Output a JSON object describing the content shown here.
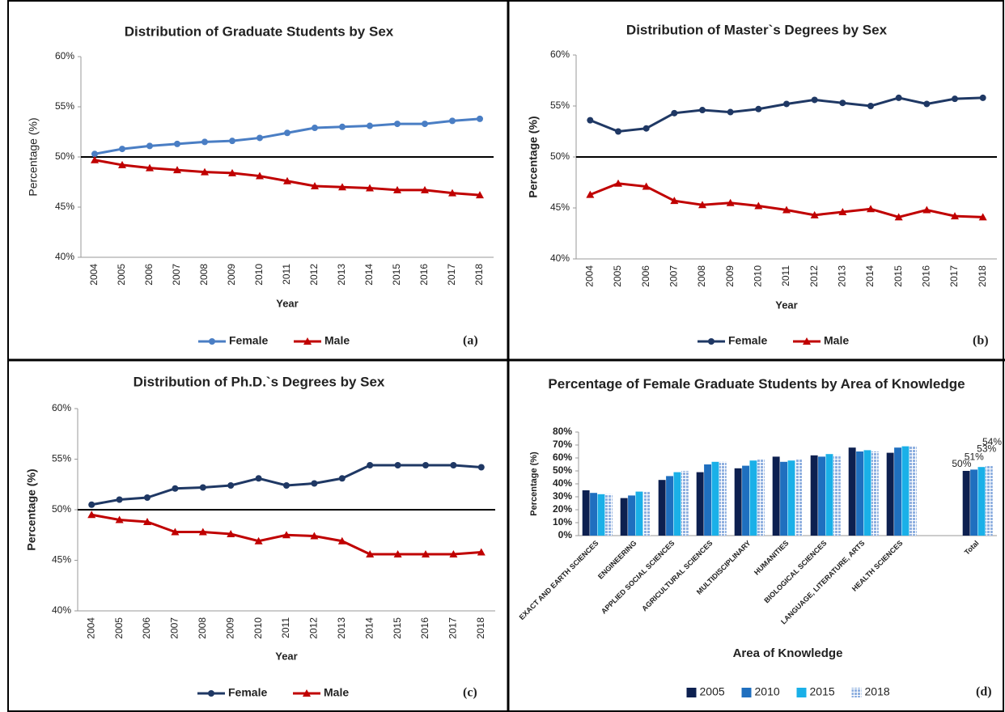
{
  "chart_data": [
    {
      "type": "line",
      "title": "Distribution of Graduate Students by Sex",
      "xlabel": "Year",
      "ylabel": "Percentage (%)",
      "panel_label": "(a)",
      "categories": [
        "2004",
        "2005",
        "2006",
        "2007",
        "2008",
        "2009",
        "2010",
        "2011",
        "2012",
        "2013",
        "2014",
        "2015",
        "2016",
        "2017",
        "2018"
      ],
      "series": [
        {
          "name": "Female",
          "color": "#4a7ec4",
          "marker": "circle",
          "values": [
            50.3,
            50.8,
            51.1,
            51.3,
            51.5,
            51.6,
            51.9,
            52.4,
            52.9,
            53.0,
            53.1,
            53.3,
            53.3,
            53.6,
            53.8
          ]
        },
        {
          "name": "Male",
          "color": "#c00000",
          "marker": "triangle",
          "values": [
            49.7,
            49.2,
            48.9,
            48.7,
            48.5,
            48.4,
            48.1,
            47.6,
            47.1,
            47.0,
            46.9,
            46.7,
            46.7,
            46.4,
            46.2
          ]
        }
      ],
      "ylim": [
        40,
        60
      ],
      "yticks": [
        {
          "value": 40,
          "label": "40%"
        },
        {
          "value": 45,
          "label": "45%"
        },
        {
          "value": 50,
          "label": "50%"
        },
        {
          "value": 55,
          "label": "55%"
        },
        {
          "value": 60,
          "label": "60%"
        }
      ],
      "reference_line": 50
    },
    {
      "type": "line",
      "title": "Distribution of Master`s Degrees by Sex",
      "xlabel": "Year",
      "ylabel": "Percentage (%)",
      "panel_label": "(b)",
      "categories": [
        "2004",
        "2005",
        "2006",
        "2007",
        "2008",
        "2009",
        "2010",
        "2011",
        "2012",
        "2013",
        "2014",
        "2015",
        "2016",
        "2017",
        "2018"
      ],
      "series": [
        {
          "name": "Female",
          "color": "#1f3864",
          "marker": "circle",
          "values": [
            53.6,
            52.5,
            52.8,
            54.3,
            54.6,
            54.4,
            54.7,
            55.2,
            55.6,
            55.3,
            55.0,
            55.8,
            55.2,
            55.7,
            55.8
          ]
        },
        {
          "name": "Male",
          "color": "#c00000",
          "marker": "triangle",
          "values": [
            46.3,
            47.4,
            47.1,
            45.7,
            45.3,
            45.5,
            45.2,
            44.8,
            44.3,
            44.6,
            44.9,
            44.1,
            44.8,
            44.2,
            44.1
          ]
        }
      ],
      "ylim": [
        40,
        60
      ],
      "yticks": [
        {
          "value": 40,
          "label": "40%"
        },
        {
          "value": 45,
          "label": "45%"
        },
        {
          "value": 50,
          "label": "50%"
        },
        {
          "value": 55,
          "label": "55%"
        },
        {
          "value": 60,
          "label": "60%"
        }
      ],
      "reference_line": 50
    },
    {
      "type": "line",
      "title": "Distribution of Ph.D.`s Degrees by Sex",
      "xlabel": "Year",
      "ylabel": "Percentage (%)",
      "panel_label": "(c)",
      "categories": [
        "2004",
        "2005",
        "2006",
        "2007",
        "2008",
        "2009",
        "2010",
        "2011",
        "2012",
        "2013",
        "2014",
        "2015",
        "2016",
        "2017",
        "2018"
      ],
      "series": [
        {
          "name": "Female",
          "color": "#1f3864",
          "marker": "circle",
          "values": [
            50.5,
            51.0,
            51.2,
            52.1,
            52.2,
            52.4,
            53.1,
            52.4,
            52.6,
            53.1,
            54.4,
            54.4,
            54.4,
            54.4,
            54.2
          ]
        },
        {
          "name": "Male",
          "color": "#c00000",
          "marker": "triangle",
          "values": [
            49.5,
            49.0,
            48.8,
            47.8,
            47.8,
            47.6,
            46.9,
            47.5,
            47.4,
            46.9,
            45.6,
            45.6,
            45.6,
            45.6,
            45.8
          ]
        }
      ],
      "ylim": [
        40,
        60
      ],
      "yticks": [
        {
          "value": 40,
          "label": "40%"
        },
        {
          "value": 45,
          "label": "45%"
        },
        {
          "value": 50,
          "label": "50%"
        },
        {
          "value": 55,
          "label": "55%"
        },
        {
          "value": 60,
          "label": "60%"
        }
      ],
      "reference_line": 50
    },
    {
      "type": "bar",
      "title": "Percentage of Female Graduate Students by Area of Knowledge",
      "xlabel": "Area of Knowledge",
      "ylabel": "Percentage (%)",
      "panel_label": "(d)",
      "categories": [
        "EXACT AND EARTH SCIENCES",
        "ENGINEERING",
        "APPLIED SOCIAL SCIENCES",
        "AGRICULTURAL SCIENCES",
        "MULTIDISCIPLINARY",
        "HUMANITIES",
        "BIOLOGICAL SCIENCES",
        "LANGUAGE, LITERATURE, ARTS",
        "HEALTH SCIENCES",
        null,
        "Total"
      ],
      "series": [
        {
          "name": "2005",
          "color": "#0d2050",
          "values": [
            35,
            29,
            43,
            49,
            52,
            61,
            62,
            68,
            64,
            null,
            50
          ],
          "value_labels": [
            null,
            null,
            null,
            null,
            null,
            null,
            null,
            null,
            null,
            null,
            "50%"
          ]
        },
        {
          "name": "2010",
          "color": "#1f6fbf",
          "values": [
            33,
            31,
            46,
            55,
            54,
            57,
            61,
            65,
            68,
            null,
            51
          ],
          "value_labels": [
            null,
            null,
            null,
            null,
            null,
            null,
            null,
            null,
            null,
            null,
            "51%"
          ]
        },
        {
          "name": "2015",
          "color": "#1ab0e8",
          "values": [
            32,
            34,
            49,
            57,
            58,
            58,
            63,
            66,
            69,
            null,
            53
          ],
          "value_labels": [
            null,
            null,
            null,
            null,
            null,
            null,
            null,
            null,
            null,
            null,
            "53%"
          ]
        },
        {
          "name": "2018",
          "color": "#8fb0e0",
          "pattern": "dots",
          "values": [
            32,
            34,
            50,
            57,
            59,
            59,
            62,
            65,
            69,
            null,
            54
          ],
          "value_labels": [
            null,
            null,
            null,
            null,
            null,
            null,
            null,
            null,
            null,
            null,
            "54%"
          ]
        }
      ],
      "ylim": [
        0,
        80
      ],
      "yticks": [
        {
          "value": 0,
          "label": "0%"
        },
        {
          "value": 10,
          "label": "10%"
        },
        {
          "value": 20,
          "label": "20%"
        },
        {
          "value": 30,
          "label": "30%"
        },
        {
          "value": 40,
          "label": "40%"
        },
        {
          "value": 50,
          "label": "50%"
        },
        {
          "value": 60,
          "label": "60%"
        },
        {
          "value": 70,
          "label": "70%"
        },
        {
          "value": 80,
          "label": "80%"
        }
      ]
    }
  ]
}
